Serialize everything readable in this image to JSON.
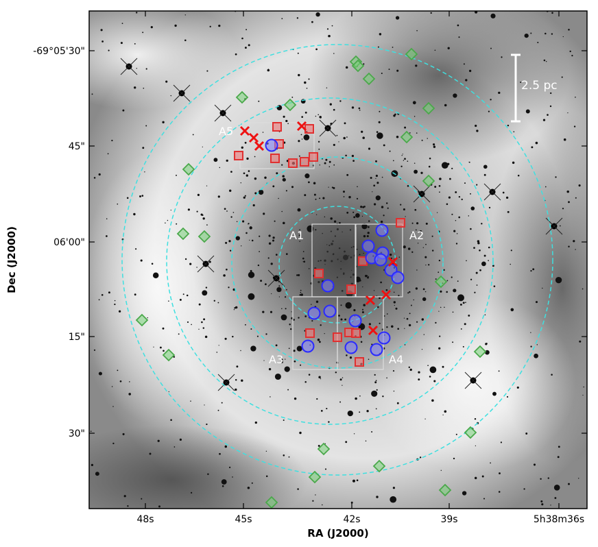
{
  "axes": {
    "xlabel": "RA (J2000)",
    "ylabel": "Dec (J2000)",
    "xticks": [
      "48s",
      "45s",
      "42s",
      "39s",
      "5h38m36s"
    ],
    "yticks": [
      "-69°05'30\"",
      "45\"",
      "06'00\"",
      "15\"",
      "30\""
    ]
  },
  "regions": [
    "A1",
    "A2",
    "A3",
    "A4",
    "A5"
  ],
  "scale_bar": {
    "label": "2.5 pc"
  },
  "colors": {
    "circle_guides": "#3ee0e0",
    "diamond_markers": "#4aa84a",
    "square_markers": "#e03030",
    "circle_markers": "#2a2aff",
    "cross_markers": "#ee1111"
  }
}
